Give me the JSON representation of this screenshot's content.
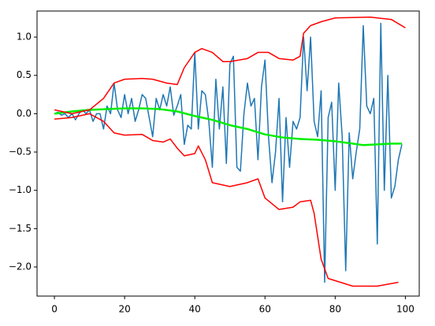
{
  "chart_data": {
    "type": "line",
    "x": [
      0,
      1,
      2,
      3,
      4,
      5,
      6,
      7,
      8,
      9,
      10,
      11,
      12,
      13,
      14,
      15,
      16,
      17,
      18,
      19,
      20,
      21,
      22,
      23,
      24,
      25,
      26,
      27,
      28,
      29,
      30,
      31,
      32,
      33,
      34,
      35,
      36,
      37,
      38,
      39,
      40,
      41,
      42,
      43,
      44,
      45,
      46,
      47,
      48,
      49,
      50,
      51,
      52,
      53,
      54,
      55,
      56,
      57,
      58,
      59,
      60,
      61,
      62,
      63,
      64,
      65,
      66,
      67,
      68,
      69,
      70,
      71,
      72,
      73,
      74,
      75,
      76,
      77,
      78,
      79,
      80,
      81,
      82,
      83,
      84,
      85,
      86,
      87,
      88,
      89,
      90,
      91,
      92,
      93,
      94,
      95,
      96,
      97,
      98,
      99
    ],
    "series": [
      {
        "color": "#1f77b4",
        "values": [
          0.0,
          0.02,
          -0.02,
          0.0,
          -0.05,
          0.0,
          -0.08,
          0.0,
          0.05,
          0.0,
          0.05,
          -0.1,
          0.0,
          0.0,
          -0.2,
          0.1,
          0.0,
          0.4,
          0.05,
          -0.05,
          0.25,
          0.0,
          0.2,
          -0.1,
          0.05,
          0.25,
          0.2,
          -0.05,
          -0.3,
          0.2,
          0.05,
          0.25,
          0.1,
          0.35,
          -0.02,
          0.1,
          0.25,
          -0.4,
          -0.15,
          -0.2,
          0.8,
          -0.2,
          0.3,
          0.25,
          -0.1,
          -0.7,
          0.45,
          -0.2,
          0.35,
          -0.65,
          0.65,
          0.75,
          -0.7,
          -0.75,
          0.0,
          0.4,
          0.1,
          0.2,
          -0.6,
          0.35,
          0.7,
          -0.3,
          -0.9,
          -0.5,
          0.2,
          -1.15,
          -0.05,
          -0.7,
          -0.1,
          -0.2,
          -0.05,
          1.0,
          0.3,
          1.0,
          -0.1,
          -0.3,
          0.3,
          -2.2,
          -0.05,
          0.15,
          -1.0,
          0.4,
          -0.3,
          -2.05,
          -0.25,
          -0.85,
          -0.5,
          -0.2,
          1.15,
          0.1,
          0.0,
          0.2,
          -1.7,
          1.18,
          -1.0,
          0.5,
          -1.1,
          -0.95,
          -0.6,
          -0.4
        ]
      },
      {
        "color": "#00ee00",
        "x": [
          0,
          5,
          10,
          15,
          20,
          25,
          30,
          35,
          40,
          45,
          50,
          55,
          60,
          65,
          70,
          75,
          80,
          85,
          88,
          92,
          96,
          99
        ],
        "values": [
          0.0,
          0.03,
          0.05,
          0.06,
          0.07,
          0.07,
          0.06,
          0.03,
          -0.03,
          -0.08,
          -0.15,
          -0.2,
          -0.27,
          -0.31,
          -0.33,
          -0.34,
          -0.36,
          -0.39,
          -0.41,
          -0.4,
          -0.39,
          -0.39
        ]
      },
      {
        "color": "#ff0000",
        "x": [
          0,
          5,
          10,
          14,
          17,
          20,
          25,
          28,
          32,
          35,
          37,
          40,
          42,
          45,
          48,
          50,
          55,
          58,
          61,
          64,
          68,
          70,
          71,
          73,
          76,
          80,
          90,
          96,
          100
        ],
        "values": [
          0.05,
          0.0,
          0.05,
          0.2,
          0.4,
          0.45,
          0.46,
          0.45,
          0.4,
          0.38,
          0.6,
          0.8,
          0.85,
          0.8,
          0.68,
          0.68,
          0.72,
          0.8,
          0.8,
          0.72,
          0.7,
          0.75,
          1.05,
          1.15,
          1.2,
          1.25,
          1.26,
          1.23,
          1.12
        ]
      },
      {
        "color": "#ff0000",
        "x": [
          0,
          5,
          10,
          14,
          17,
          20,
          25,
          28,
          31,
          33,
          35,
          37,
          40,
          41,
          43,
          45,
          50,
          55,
          58,
          60,
          64,
          68,
          70,
          73,
          74,
          76,
          78,
          85,
          92,
          98
        ],
        "values": [
          -0.07,
          -0.05,
          0.0,
          -0.1,
          -0.25,
          -0.28,
          -0.27,
          -0.35,
          -0.37,
          -0.33,
          -0.45,
          -0.55,
          -0.52,
          -0.42,
          -0.6,
          -0.9,
          -0.95,
          -0.9,
          -0.85,
          -1.1,
          -1.25,
          -1.22,
          -1.15,
          -1.13,
          -1.3,
          -1.9,
          -2.15,
          -2.25,
          -2.25,
          -2.2
        ]
      }
    ],
    "xlim": [
      -4.95,
      103.95
    ],
    "ylim": [
      -2.38,
      1.34
    ],
    "xticks": [
      0,
      20,
      40,
      60,
      80,
      100
    ],
    "yticks": [
      {
        "value": 1.0,
        "label": "1.0"
      },
      {
        "value": 0.5,
        "label": "0.5"
      },
      {
        "value": 0.0,
        "label": "0.0"
      },
      {
        "value": -0.5,
        "label": "−0.5"
      },
      {
        "value": -1.0,
        "label": "−1.0"
      },
      {
        "value": -1.5,
        "label": "−1.5"
      },
      {
        "value": -2.0,
        "label": "−2.0"
      }
    ]
  }
}
